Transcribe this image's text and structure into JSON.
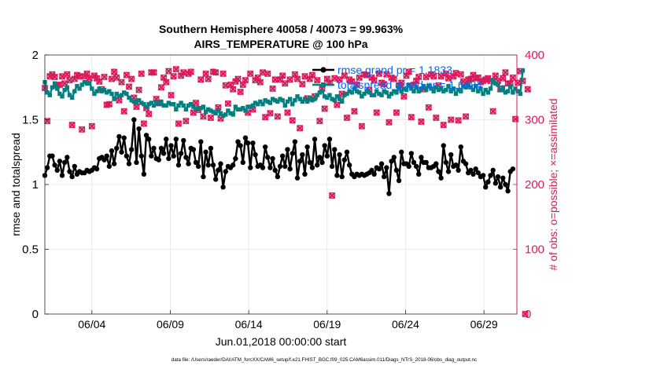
{
  "chart_data": {
    "type": "line",
    "title_line1": "Southern Hemisphere 40058 / 40073 = 99.963%",
    "title_line2": "AIRS_TEMPERATURE @ 100 hPa",
    "xlabel": "Jun.01,2018 00:00:00 start",
    "ylabel_left": "rmse and totalspread",
    "ylabel_right": "# of obs: o=possible; ×=assimilated",
    "footer": "data file: /Users/raeder/DAI/ATM_forcXX/CAM6_setup/f.e21.FHIST_BGC.f09_025.CAM6assim.011/Diags_NTrS_2018-06/obs_diag_output.nc",
    "xlim": [
      0,
      30.1
    ],
    "ylim_left": [
      0,
      2
    ],
    "ylim_right": [
      0,
      400
    ],
    "y_ticks_left": [
      "0",
      "0.5",
      "1",
      "1.5",
      "2"
    ],
    "y_tick_values_left": [
      0,
      0.5,
      1,
      1.5,
      2
    ],
    "y_ticks_right": [
      "0",
      "100",
      "200",
      "300",
      "400"
    ],
    "y_tick_values_right": [
      0,
      100,
      200,
      300,
      400
    ],
    "x_tick_labels": [
      "06/04",
      "06/09",
      "06/14",
      "06/19",
      "06/24",
      "06/29"
    ],
    "x_tick_values": [
      3,
      8,
      13,
      18,
      23,
      28
    ],
    "colors": {
      "rmse": "#000000",
      "spread": "#008080",
      "obs": "#d91a5a",
      "legend_text": "#0066ff",
      "grid": "#e6e6e6"
    },
    "series": [
      {
        "name": "rmse grand pr = 1.1833",
        "axis": "left",
        "values": [
          1.07,
          1.13,
          1.22,
          1.22,
          1.15,
          1.11,
          1.18,
          1.07,
          1.17,
          1.21,
          1.1,
          1.06,
          1.14,
          1.08,
          1.1,
          1.09,
          1.09,
          1.11,
          1.1,
          1.11,
          1.13,
          1.12,
          1.2,
          1.21,
          1.19,
          1.22,
          1.14,
          1.26,
          1.16,
          1.28,
          1.37,
          1.25,
          1.36,
          1.22,
          1.16,
          1.27,
          1.5,
          1.17,
          1.43,
          1.22,
          1.08,
          1.38,
          1.35,
          1.22,
          1.28,
          1.2,
          1.19,
          1.28,
          1.24,
          1.35,
          1.2,
          1.3,
          1.22,
          1.35,
          1.15,
          1.24,
          1.34,
          1.21,
          1.16,
          1.28,
          1.27,
          1.17,
          1.14,
          1.33,
          1.06,
          1.25,
          1.15,
          1.28,
          1.15,
          1.04,
          1.11,
          1.16,
          0.98,
          1.1,
          1.14,
          1.13,
          1.15,
          1.2,
          1.33,
          1.3,
          1.17,
          1.36,
          1.32,
          1.13,
          1.32,
          1.23,
          1.14,
          1.15,
          1.13,
          1.29,
          1.21,
          1.13,
          1.2,
          1.11,
          1.06,
          1.14,
          1.22,
          1.14,
          1.27,
          1.12,
          1.24,
          1.33,
          1.05,
          1.18,
          1.23,
          1.08,
          1.29,
          1.17,
          1.13,
          1.35,
          1.15,
          1.21,
          1.17,
          1.3,
          1.22,
          1.35,
          1.14,
          1.27,
          1.07,
          1.23,
          1.06,
          1.19,
          1.25,
          1.15,
          1.08,
          1.06,
          1.08,
          1.07,
          1.08,
          1.07,
          1.08,
          1.09,
          1.11,
          1.08,
          1.13,
          1.12,
          1.16,
          1.06,
          1.13,
          0.93,
          1.18,
          1.21,
          1.11,
          1.03,
          1.25,
          1.16,
          1.16,
          1.14,
          1.24,
          1.17,
          1.14,
          1.08,
          1.21,
          1.17,
          1.17,
          1.13,
          1.13,
          1.14,
          1.16,
          1.1,
          1.05,
          1.3,
          1.17,
          1.1,
          1.23,
          1.14,
          1.15,
          1.11,
          1.29,
          1.18,
          1.16,
          1.09,
          1.11,
          1.08,
          1.12,
          1.09,
          1.06,
          1.07,
          0.98,
          1.02,
          1.07,
          1.11,
          1.01,
          1.06,
          0.98,
          1.05,
          1.0,
          0.95,
          1.1,
          1.12
        ]
      },
      {
        "name": "totalspread grand pr = 1.6484",
        "axis": "left",
        "values": [
          1.79,
          1.71,
          1.69,
          1.75,
          1.78,
          1.74,
          1.7,
          1.68,
          1.73,
          1.75,
          1.69,
          1.67,
          1.72,
          1.76,
          1.74,
          1.77,
          1.79,
          1.78,
          1.78,
          1.74,
          1.7,
          1.72,
          1.74,
          1.72,
          1.73,
          1.71,
          1.72,
          1.7,
          1.66,
          1.7,
          1.68,
          1.69,
          1.71,
          1.7,
          1.67,
          1.65,
          1.64,
          1.63,
          1.65,
          1.63,
          1.62,
          1.6,
          1.62,
          1.63,
          1.61,
          1.63,
          1.62,
          1.64,
          1.61,
          1.61,
          1.63,
          1.62,
          1.62,
          1.58,
          1.61,
          1.63,
          1.61,
          1.58,
          1.61,
          1.62,
          1.6,
          1.58,
          1.59,
          1.59,
          1.6,
          1.56,
          1.58,
          1.57,
          1.56,
          1.55,
          1.57,
          1.55,
          1.53,
          1.54,
          1.57,
          1.55,
          1.54,
          1.6,
          1.58,
          1.58,
          1.59,
          1.57,
          1.6,
          1.6,
          1.61,
          1.63,
          1.62,
          1.64,
          1.62,
          1.65,
          1.64,
          1.63,
          1.66,
          1.65,
          1.64,
          1.66,
          1.65,
          1.61,
          1.64,
          1.66,
          1.62,
          1.65,
          1.68,
          1.66,
          1.64,
          1.66,
          1.64,
          1.67,
          1.65,
          1.66,
          1.69,
          1.71,
          1.72,
          1.68,
          1.67,
          1.69,
          1.66,
          1.65,
          1.68,
          1.66,
          1.64,
          1.69,
          1.7,
          1.72,
          1.71,
          1.74,
          1.72,
          1.71,
          1.68,
          1.7,
          1.72,
          1.71,
          1.69,
          1.69,
          1.72,
          1.7,
          1.69,
          1.72,
          1.71,
          1.68,
          1.7,
          1.72,
          1.71,
          1.75,
          1.72,
          1.74,
          1.73,
          1.77,
          1.74,
          1.72,
          1.75,
          1.72,
          1.74,
          1.76,
          1.73,
          1.76,
          1.74,
          1.72,
          1.75,
          1.73,
          1.74,
          1.72,
          1.73,
          1.76,
          1.72,
          1.74,
          1.7,
          1.73,
          1.72,
          1.76,
          1.75,
          1.77,
          1.75,
          1.73,
          1.76,
          1.72,
          1.74,
          1.7,
          1.73,
          1.71,
          1.74,
          1.8,
          1.78,
          1.77,
          1.73,
          1.75,
          1.71,
          1.72,
          1.76,
          1.71,
          1.74,
          1.72,
          1.7,
          1.88
        ]
      },
      {
        "name": "obs possible",
        "axis": "right",
        "marker": "o",
        "values": [
          349,
          298,
          367,
          370,
          366,
          353,
          354,
          367,
          356,
          370,
          361,
          292,
          363,
          369,
          367,
          285,
          367,
          371,
          364,
          290,
          368,
          364,
          359,
          347,
          366,
          323,
          324,
          363,
          374,
          365,
          330,
          358,
          313,
          369,
          351,
          363,
          334,
          320,
          346,
          371,
          294,
          318,
          309,
          373,
          373,
          332,
          326,
          350,
          365,
          358,
          375,
          338,
          367,
          378,
          294,
          368,
          373,
          298,
          371,
          374,
          311,
          326,
          315,
          362,
          305,
          371,
          363,
          303,
          374,
          373,
          319,
          302,
          371,
          353,
          325,
          354,
          347,
          359,
          363,
          343,
          354,
          361,
          311,
          371,
          316,
          361,
          365,
          358,
          373,
          304,
          371,
          310,
          348,
          362,
          305,
          362,
          368,
          356,
          311,
          362,
          299,
          370,
          363,
          287,
          355,
          367,
          333,
          363,
          369,
          336,
          361,
          298,
          348,
          317,
          363,
          357,
          183,
          364,
          323,
          362,
          340,
          368,
          303,
          362,
          359,
          313,
          354,
          365,
          290,
          370,
          369,
          346,
          365,
          361,
          311,
          371,
          357,
          355,
          370,
          296,
          365,
          363,
          311,
          353,
          357,
          336,
          368,
          374,
          304,
          354,
          360,
          366,
          297,
          347,
          366,
          319,
          370,
          367,
          303,
          353,
          367,
          292,
          371,
          364,
          300,
          367,
          372,
          299,
          370,
          359,
          305,
          362,
          363,
          369,
          364,
          365,
          358,
          360,
          362,
          364,
          360,
          313,
          368,
          360,
          347,
          364,
          373,
          356,
          356,
          365,
          301,
          357,
          375,
          360,
          0,
          347
        ]
      },
      {
        "name": "obs assimilated",
        "axis": "right",
        "marker": "x",
        "values": [
          349,
          298,
          367,
          370,
          366,
          353,
          354,
          367,
          356,
          370,
          361,
          292,
          363,
          369,
          367,
          285,
          367,
          371,
          364,
          290,
          368,
          364,
          359,
          347,
          366,
          323,
          324,
          363,
          374,
          365,
          330,
          358,
          313,
          369,
          351,
          363,
          334,
          320,
          346,
          371,
          294,
          318,
          309,
          373,
          373,
          332,
          326,
          350,
          365,
          358,
          375,
          338,
          367,
          378,
          294,
          368,
          373,
          298,
          371,
          374,
          311,
          326,
          315,
          362,
          305,
          371,
          363,
          303,
          374,
          373,
          319,
          302,
          371,
          353,
          325,
          354,
          347,
          359,
          363,
          343,
          354,
          361,
          311,
          371,
          316,
          361,
          365,
          358,
          373,
          304,
          371,
          310,
          348,
          362,
          305,
          362,
          368,
          356,
          311,
          362,
          299,
          370,
          363,
          287,
          355,
          367,
          333,
          363,
          369,
          336,
          361,
          298,
          348,
          317,
          363,
          357,
          183,
          364,
          323,
          362,
          340,
          368,
          303,
          362,
          359,
          313,
          354,
          365,
          290,
          370,
          369,
          346,
          365,
          361,
          311,
          371,
          357,
          355,
          370,
          296,
          365,
          363,
          311,
          353,
          357,
          336,
          368,
          374,
          304,
          354,
          360,
          366,
          297,
          347,
          366,
          319,
          370,
          367,
          303,
          353,
          367,
          292,
          371,
          364,
          300,
          367,
          372,
          299,
          370,
          359,
          305,
          362,
          363,
          369,
          364,
          365,
          358,
          360,
          362,
          364,
          360,
          313,
          368,
          360,
          347,
          364,
          373,
          356,
          356,
          365,
          301,
          357,
          375,
          360,
          0,
          347
        ]
      }
    ],
    "legend": {
      "location": "top-right",
      "entries": [
        "rmse grand pr = 1.1833",
        "totalspread grand pr = 1.6484"
      ]
    }
  }
}
